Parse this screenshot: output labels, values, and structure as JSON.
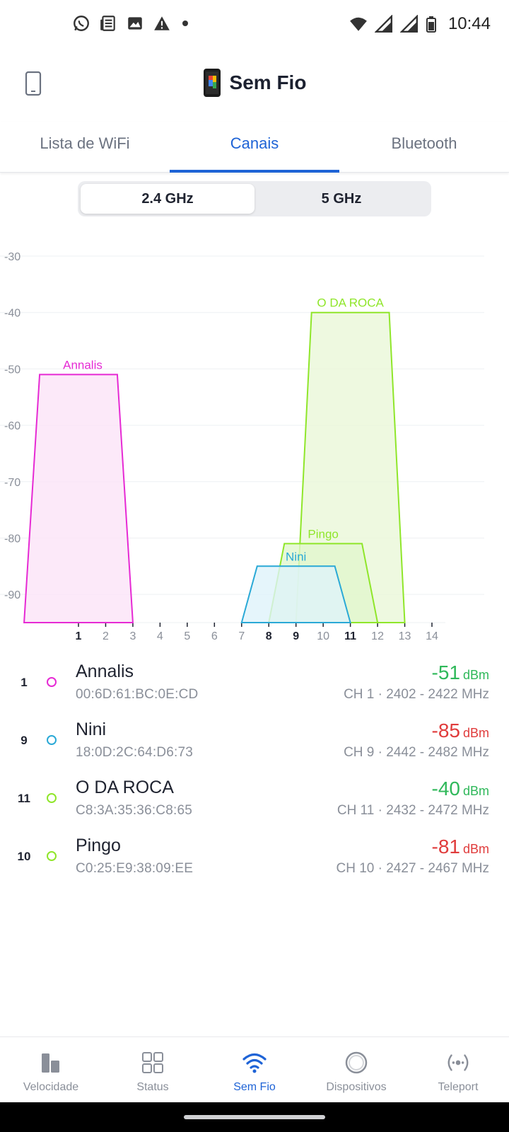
{
  "status_bar": {
    "time": "10:44",
    "left_icons": [
      "whatsapp-icon",
      "news-icon",
      "gallery-icon",
      "warning-icon",
      "dot-icon"
    ],
    "right_icons": [
      "wifi-icon",
      "signal-icon",
      "signal-icon",
      "battery-icon"
    ]
  },
  "app_bar": {
    "title": "Sem Fio"
  },
  "tabs": [
    {
      "label": "Lista de WiFi",
      "active": false
    },
    {
      "label": "Canais",
      "active": true
    },
    {
      "label": "Bluetooth",
      "active": false
    }
  ],
  "band_selector": {
    "options": [
      "2.4 GHz",
      "5 GHz"
    ],
    "selected": "2.4 GHz"
  },
  "chart_data": {
    "type": "area",
    "xlabel": "",
    "ylabel": "",
    "ylim": [
      -95,
      -30
    ],
    "xlim": [
      -1,
      15
    ],
    "y_ticks": [
      -30,
      -40,
      -50,
      -60,
      -70,
      -80,
      -90
    ],
    "x_ticks": [
      {
        "label": "1",
        "bold": true
      },
      {
        "label": "2",
        "bold": false
      },
      {
        "label": "3",
        "bold": false
      },
      {
        "label": "4",
        "bold": false
      },
      {
        "label": "5",
        "bold": false
      },
      {
        "label": "6",
        "bold": false
      },
      {
        "label": "7",
        "bold": false
      },
      {
        "label": "8",
        "bold": true
      },
      {
        "label": "9",
        "bold": true
      },
      {
        "label": "10",
        "bold": false
      },
      {
        "label": "11",
        "bold": true
      },
      {
        "label": "12",
        "bold": false
      },
      {
        "label": "13",
        "bold": false
      },
      {
        "label": "14",
        "bold": false
      }
    ],
    "grid": true,
    "series": [
      {
        "name": "Annalis",
        "channel": 1,
        "start_channel": -1,
        "end_channel": 3,
        "signal": -51,
        "color": "#e62ad4",
        "fill": "#fbe3f8"
      },
      {
        "name": "O DA ROCA",
        "channel": 11,
        "start_channel": 9,
        "end_channel": 13,
        "signal": -40,
        "color": "#8fe62a",
        "fill": "#eaf8d8"
      },
      {
        "name": "Pingo",
        "channel": 10,
        "start_channel": 8,
        "end_channel": 12,
        "signal": -81,
        "color": "#8fe62a",
        "fill": "#e1f6cd"
      },
      {
        "name": "Nini",
        "channel": 9,
        "start_channel": 7,
        "end_channel": 11,
        "signal": -85,
        "color": "#2aa9d6",
        "fill": "#dff3fa"
      }
    ]
  },
  "networks": [
    {
      "channel": "1",
      "name": "Annalis",
      "mac": "00:6D:61:BC:0E:CD",
      "signal": "-51",
      "unit": "dBm",
      "signal_color": "#2fb85a",
      "dot_color": "#e62ad4",
      "freq": "CH 1 · 2402 - 2422 MHz"
    },
    {
      "channel": "9",
      "name": "Nini",
      "mac": "18:0D:2C:64:D6:73",
      "signal": "-85",
      "unit": "dBm",
      "signal_color": "#e03c3c",
      "dot_color": "#2aa9d6",
      "freq": "CH 9 · 2442 - 2482 MHz"
    },
    {
      "channel": "11",
      "name": "O DA ROCA",
      "mac": "C8:3A:35:36:C8:65",
      "signal": "-40",
      "unit": "dBm",
      "signal_color": "#2fb85a",
      "dot_color": "#8fe62a",
      "freq": "CH 11 · 2432 - 2472 MHz"
    },
    {
      "channel": "10",
      "name": "Pingo",
      "mac": "C0:25:E9:38:09:EE",
      "signal": "-81",
      "unit": "dBm",
      "signal_color": "#e03c3c",
      "dot_color": "#8fe62a",
      "freq": "CH 10 · 2427 - 2467 MHz"
    }
  ],
  "bottom_nav": [
    {
      "label": "Velocidade",
      "icon": "speed-bars-icon",
      "active": false
    },
    {
      "label": "Status",
      "icon": "grid-icon",
      "active": false
    },
    {
      "label": "Sem Fio",
      "icon": "wifi-icon",
      "active": true
    },
    {
      "label": "Dispositivos",
      "icon": "circle-icon",
      "active": false
    },
    {
      "label": "Teleport",
      "icon": "teleport-icon",
      "active": false
    }
  ],
  "colors": {
    "accent": "#1e63d6",
    "good": "#2fb85a",
    "bad": "#e03c3c"
  }
}
